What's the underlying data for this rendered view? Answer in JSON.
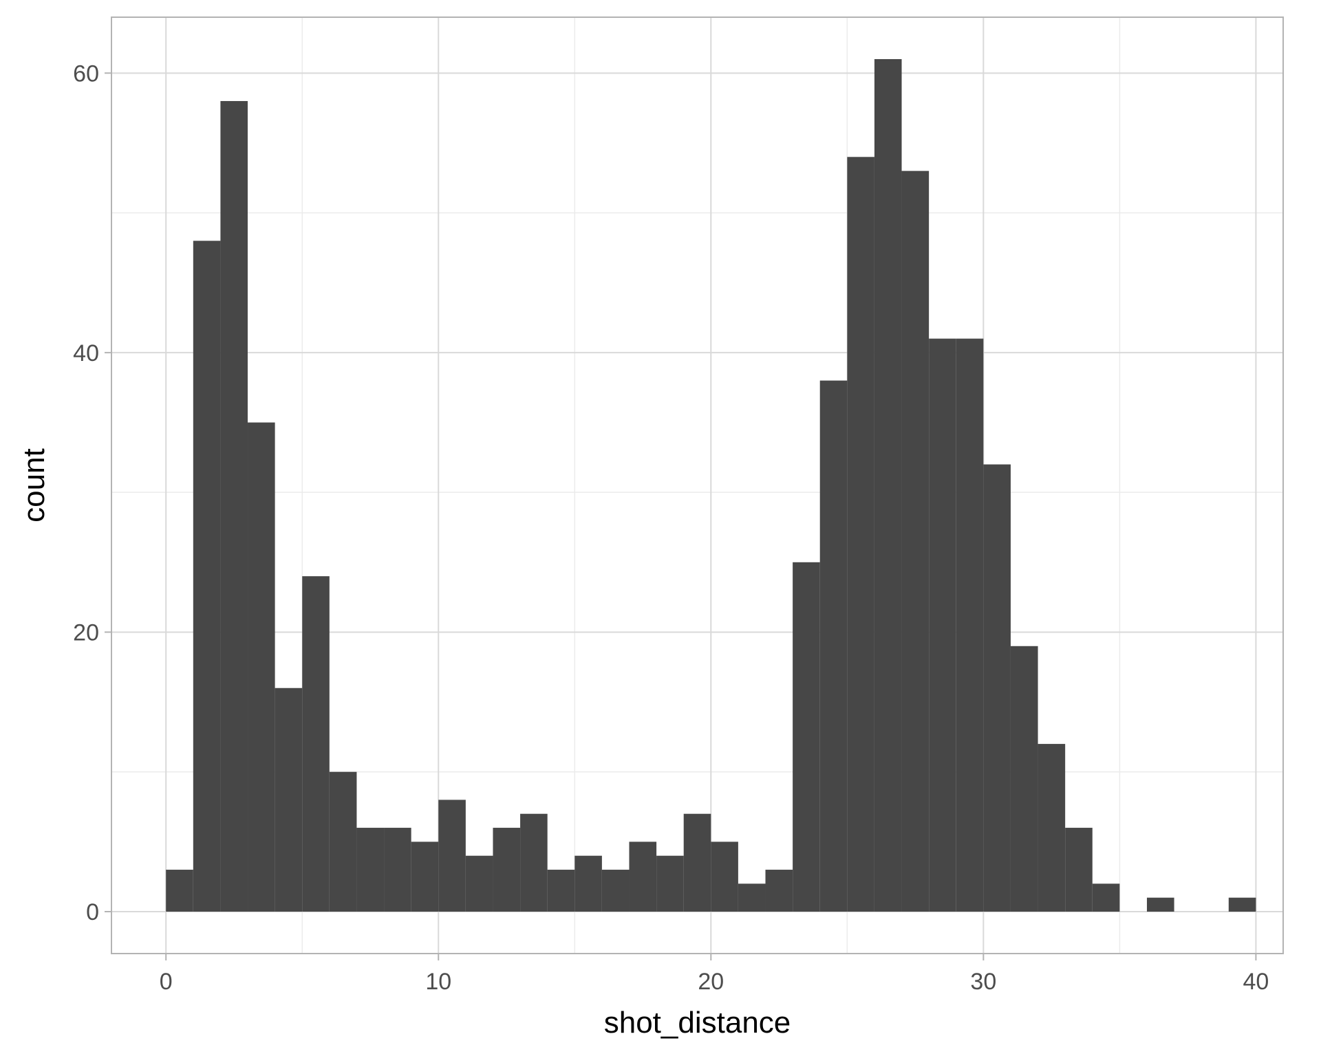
{
  "chart_data": {
    "type": "bar",
    "subtype": "histogram",
    "title": "",
    "xlabel": "shot_distance",
    "ylabel": "count",
    "xlim": [
      -2,
      41
    ],
    "ylim": [
      -3,
      64
    ],
    "x_ticks": [
      0,
      10,
      20,
      30,
      40
    ],
    "y_ticks": [
      0,
      20,
      40,
      60
    ],
    "x_tick_labels": [
      "0",
      "10",
      "20",
      "30",
      "40"
    ],
    "y_tick_labels": [
      "0",
      "20",
      "40",
      "60"
    ],
    "grid": true,
    "legend": "none",
    "bin_width": 1,
    "bins": [
      {
        "x0": 0,
        "x1": 1,
        "count": 3
      },
      {
        "x0": 1,
        "x1": 2,
        "count": 48
      },
      {
        "x0": 2,
        "x1": 3,
        "count": 58
      },
      {
        "x0": 3,
        "x1": 4,
        "count": 35
      },
      {
        "x0": 4,
        "x1": 5,
        "count": 16
      },
      {
        "x0": 5,
        "x1": 6,
        "count": 24
      },
      {
        "x0": 6,
        "x1": 7,
        "count": 10
      },
      {
        "x0": 7,
        "x1": 8,
        "count": 6
      },
      {
        "x0": 8,
        "x1": 9,
        "count": 6
      },
      {
        "x0": 9,
        "x1": 10,
        "count": 5
      },
      {
        "x0": 10,
        "x1": 11,
        "count": 8
      },
      {
        "x0": 11,
        "x1": 12,
        "count": 4
      },
      {
        "x0": 12,
        "x1": 13,
        "count": 6
      },
      {
        "x0": 13,
        "x1": 14,
        "count": 7
      },
      {
        "x0": 14,
        "x1": 15,
        "count": 3
      },
      {
        "x0": 15,
        "x1": 16,
        "count": 4
      },
      {
        "x0": 16,
        "x1": 17,
        "count": 3
      },
      {
        "x0": 17,
        "x1": 18,
        "count": 5
      },
      {
        "x0": 18,
        "x1": 19,
        "count": 4
      },
      {
        "x0": 19,
        "x1": 20,
        "count": 7
      },
      {
        "x0": 20,
        "x1": 21,
        "count": 5
      },
      {
        "x0": 21,
        "x1": 22,
        "count": 2
      },
      {
        "x0": 22,
        "x1": 23,
        "count": 3
      },
      {
        "x0": 23,
        "x1": 24,
        "count": 25
      },
      {
        "x0": 24,
        "x1": 25,
        "count": 38
      },
      {
        "x0": 25,
        "x1": 26,
        "count": 54
      },
      {
        "x0": 26,
        "x1": 27,
        "count": 61
      },
      {
        "x0": 27,
        "x1": 28,
        "count": 53
      },
      {
        "x0": 28,
        "x1": 29,
        "count": 41
      },
      {
        "x0": 29,
        "x1": 30,
        "count": 41
      },
      {
        "x0": 30,
        "x1": 31,
        "count": 32
      },
      {
        "x0": 31,
        "x1": 32,
        "count": 19
      },
      {
        "x0": 32,
        "x1": 33,
        "count": 12
      },
      {
        "x0": 33,
        "x1": 34,
        "count": 6
      },
      {
        "x0": 34,
        "x1": 35,
        "count": 2
      },
      {
        "x0": 35,
        "x1": 36,
        "count": 0
      },
      {
        "x0": 36,
        "x1": 37,
        "count": 1
      },
      {
        "x0": 37,
        "x1": 38,
        "count": 0
      },
      {
        "x0": 38,
        "x1": 39,
        "count": 0
      },
      {
        "x0": 39,
        "x1": 40,
        "count": 1
      }
    ],
    "colors": {
      "bar": "#474747",
      "grid_major": "#d9d9d9",
      "grid_minor": "#ebebeb",
      "panel_border": "#b3b3b3",
      "tick": "#b3b3b3"
    }
  }
}
